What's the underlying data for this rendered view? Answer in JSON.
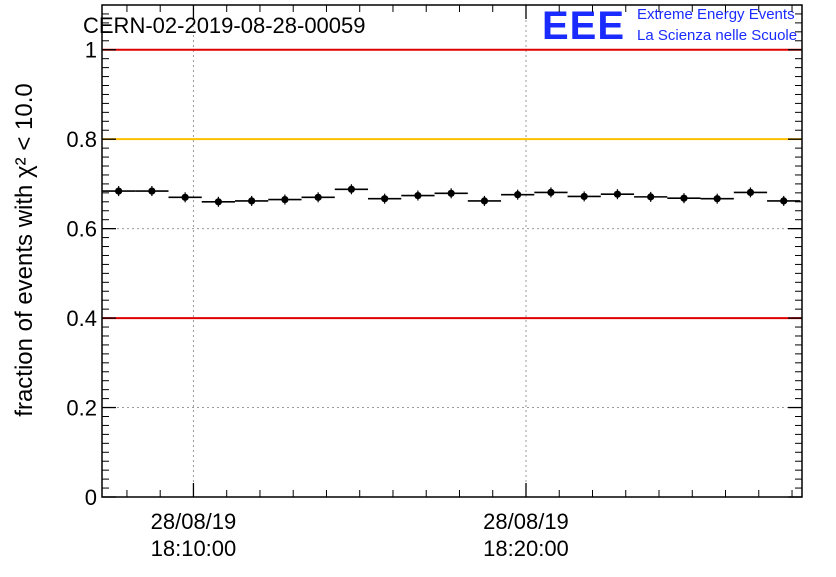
{
  "header": {
    "run_title": "CERN-02-2019-08-28-00059",
    "logo_text": "EEE",
    "org_line1": "Extreme Energy Events",
    "org_line2": "La Scienza nelle Scuole"
  },
  "colors": {
    "logo_blue": "#1a2bff",
    "limit_red": "#e00000",
    "warning_yellow": "#ffc000",
    "marker": "#000000",
    "grid": "#9a9a9a"
  },
  "chart_data": {
    "type": "scatter",
    "title": "CERN-02-2019-08-28-00059",
    "ylabel": "fraction of events with χ² < 10.0",
    "xlabel": "",
    "ylim": [
      0,
      1.1
    ],
    "yticks": [
      0,
      0.2,
      0.4,
      0.6,
      0.8,
      1
    ],
    "ytick_labels": [
      "0",
      "0.2",
      "0.4",
      "0.6",
      "0.8",
      "1"
    ],
    "xlim_minutes": [
      7.25,
      28.3
    ],
    "xticks": [
      {
        "minute": 10,
        "date": "28/08/19",
        "time": "18:10:00"
      },
      {
        "minute": 20,
        "date": "28/08/19",
        "time": "18:20:00"
      }
    ],
    "x_minor_step_minutes": 1,
    "x_minor_start_minutes": 8,
    "bin_width_minutes": 1,
    "x": [
      7.75,
      8.75,
      9.75,
      10.75,
      11.75,
      12.75,
      13.75,
      14.75,
      15.75,
      16.75,
      17.75,
      18.75,
      19.75,
      20.75,
      21.75,
      22.75,
      23.75,
      24.75,
      25.75,
      26.75,
      27.75
    ],
    "values": [
      0.684,
      0.684,
      0.67,
      0.66,
      0.662,
      0.665,
      0.67,
      0.688,
      0.667,
      0.674,
      0.679,
      0.662,
      0.676,
      0.681,
      0.672,
      0.677,
      0.671,
      0.668,
      0.667,
      0.681,
      0.662
    ],
    "reference_lines": [
      {
        "y": 1.0,
        "color": "#e00000"
      },
      {
        "y": 0.8,
        "color": "#ffc000"
      },
      {
        "y": 0.4,
        "color": "#e00000"
      }
    ],
    "grid": true
  }
}
